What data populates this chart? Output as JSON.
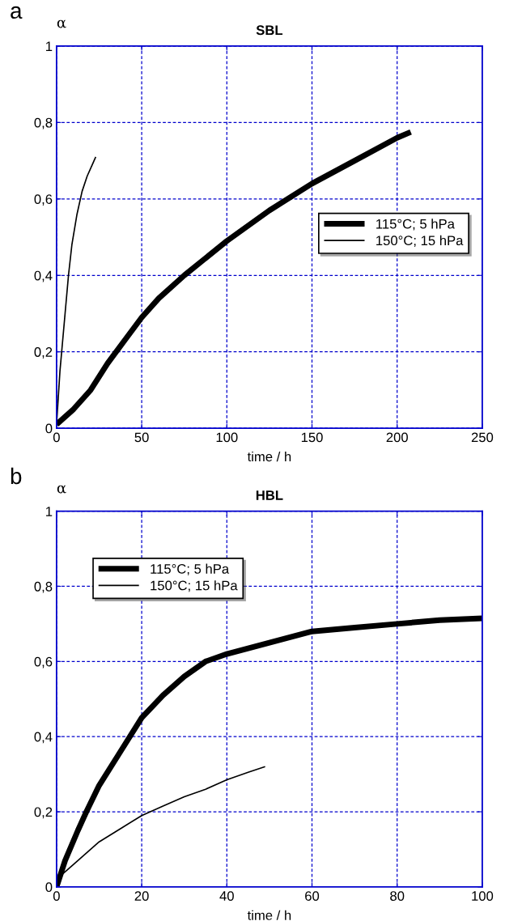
{
  "chart_data": [
    {
      "type": "line",
      "title": "SBL",
      "xlabel": "time / h",
      "ylabel": "α",
      "annotations": [
        "a"
      ],
      "xlim": [
        0,
        250
      ],
      "xticks": [
        0,
        50,
        100,
        150,
        200,
        250
      ],
      "ylim": [
        0,
        1
      ],
      "yticks": [
        0,
        {
          "value": 0.2,
          "label": "0,2"
        },
        {
          "value": 0.4,
          "label": "0,4"
        },
        {
          "value": 0.6,
          "label": "0,6"
        },
        {
          "value": 0.8,
          "label": "0,8"
        },
        1
      ],
      "grid": true,
      "legend": "center right",
      "line_style": "solid",
      "marker": "none",
      "series": [
        {
          "name": "115°C; 5 hPa",
          "color": "#000000",
          "x": [
            0,
            10,
            20,
            30,
            40,
            50,
            60,
            75,
            100,
            125,
            150,
            175,
            200,
            208
          ],
          "values": [
            0.01,
            0.05,
            0.1,
            0.17,
            0.23,
            0.29,
            0.34,
            0.4,
            0.49,
            0.57,
            0.64,
            0.7,
            0.76,
            0.775
          ]
        },
        {
          "name": "150°C; 15 hPa",
          "color": "#000000",
          "x": [
            0,
            1,
            2,
            3,
            5,
            7,
            9,
            12,
            15,
            18,
            21,
            23
          ],
          "values": [
            0.01,
            0.08,
            0.15,
            0.2,
            0.3,
            0.4,
            0.48,
            0.56,
            0.62,
            0.66,
            0.69,
            0.71
          ]
        }
      ]
    },
    {
      "type": "line",
      "title": "HBL",
      "xlabel": "time / h",
      "ylabel": "α",
      "annotations": [
        "b"
      ],
      "xlim": [
        0,
        100
      ],
      "xticks": [
        0,
        20,
        40,
        60,
        80,
        100
      ],
      "ylim": [
        0,
        1
      ],
      "yticks": [
        0,
        {
          "value": 0.2,
          "label": "0,2"
        },
        {
          "value": 0.4,
          "label": "0,4"
        },
        {
          "value": 0.6,
          "label": "0,6"
        },
        {
          "value": 0.8,
          "label": "0,8"
        },
        1
      ],
      "grid": true,
      "legend": "top left",
      "line_style": "solid",
      "marker": "none",
      "series": [
        {
          "name": "115°C; 5 hPa",
          "color": "#000000",
          "x": [
            0,
            2,
            5,
            7,
            10,
            15,
            20,
            25,
            30,
            35,
            40,
            50,
            60,
            70,
            80,
            90,
            100
          ],
          "values": [
            0,
            0.07,
            0.15,
            0.2,
            0.27,
            0.36,
            0.45,
            0.51,
            0.56,
            0.6,
            0.62,
            0.65,
            0.68,
            0.69,
            0.7,
            0.71,
            0.715
          ]
        },
        {
          "name": "150°C; 15 hPa",
          "color": "#000000",
          "x": [
            0,
            1,
            5,
            10,
            15,
            20,
            25,
            30,
            35,
            40,
            45,
            49
          ],
          "values": [
            0,
            0.03,
            0.07,
            0.12,
            0.155,
            0.19,
            0.215,
            0.24,
            0.26,
            0.285,
            0.305,
            0.32
          ]
        }
      ]
    }
  ]
}
